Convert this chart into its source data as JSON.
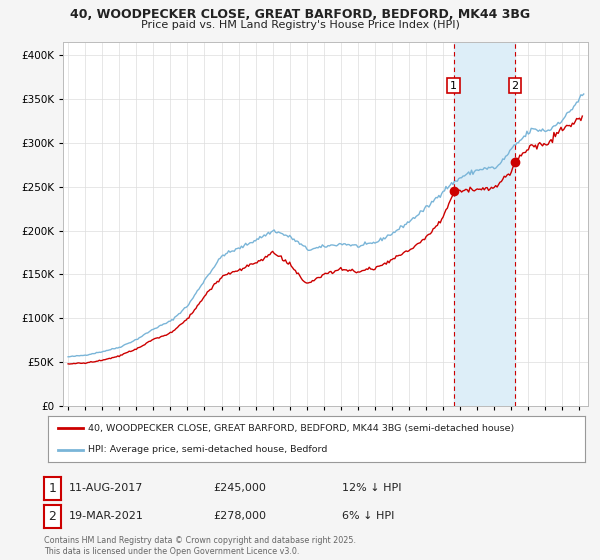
{
  "title_line1": "40, WOODPECKER CLOSE, GREAT BARFORD, BEDFORD, MK44 3BG",
  "title_line2": "Price paid vs. HM Land Registry's House Price Index (HPI)",
  "ytick_values": [
    0,
    50000,
    100000,
    150000,
    200000,
    250000,
    300000,
    350000,
    400000
  ],
  "ylim": [
    0,
    415000
  ],
  "hpi_color": "#7ab5d8",
  "price_color": "#cc0000",
  "shade_color": "#ddeef8",
  "marker1_x": 2017.614,
  "marker1_price": 245000,
  "marker2_x": 2021.208,
  "marker2_price": 278000,
  "legend_label1": "40, WOODPECKER CLOSE, GREAT BARFORD, BEDFORD, MK44 3BG (semi-detached house)",
  "legend_label2": "HPI: Average price, semi-detached house, Bedford",
  "footnote": "Contains HM Land Registry data © Crown copyright and database right 2025.\nThis data is licensed under the Open Government Licence v3.0.",
  "bg_color": "#f5f5f5",
  "plot_bg_color": "#ffffff",
  "grid_color": "#dddddd",
  "xlim_left": 1994.7,
  "xlim_right": 2025.5
}
